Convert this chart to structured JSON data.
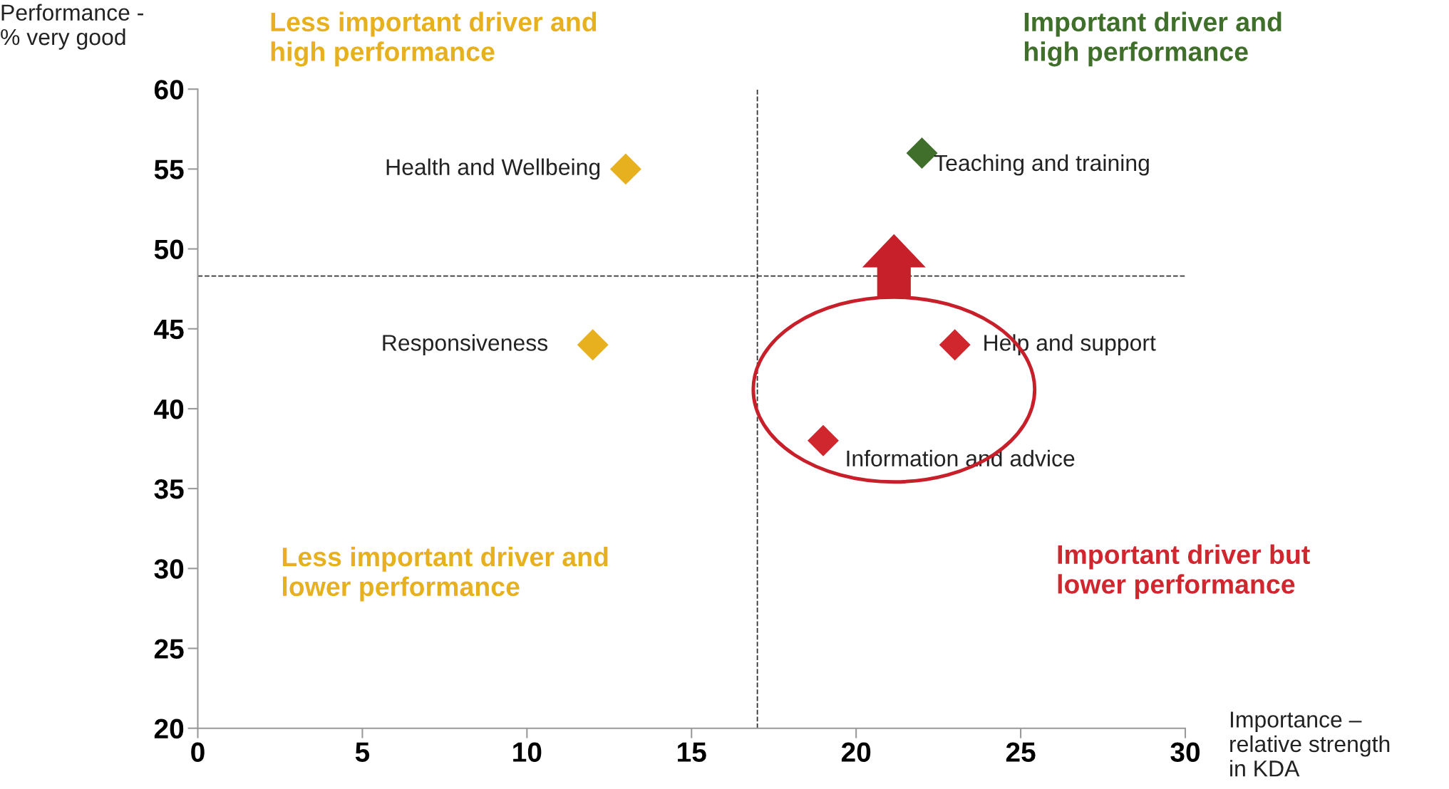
{
  "chart_data": {
    "type": "scatter",
    "xlabel": "Importance –\nrelative strength\nin KDA",
    "ylabel": "Performance -\n% very good",
    "series": [
      {
        "x": [
          13,
          12,
          22,
          23,
          19
        ],
        "values": [
          55,
          44,
          56,
          44,
          38
        ],
        "colors": [
          "#e6b01e",
          "#e6b01e",
          "#3f6f2a",
          "#d0262e",
          "#d0262e"
        ],
        "value_labels": [
          "Health and Wellbeing",
          "Responsiveness",
          "Teaching and training",
          "Help and support",
          "Information and advice"
        ]
      }
    ],
    "marker": "diamond",
    "xlim": [
      0,
      30
    ],
    "ylim": [
      20,
      60
    ],
    "xticks": [
      0,
      5,
      10,
      15,
      20,
      25,
      30
    ],
    "yticks": [
      20,
      25,
      30,
      35,
      40,
      45,
      50,
      55,
      60
    ],
    "grid": false,
    "legend": false,
    "ref_lines": [
      {
        "axis": "x",
        "value": 17,
        "color": "#333333",
        "line_style": "dashed"
      },
      {
        "axis": "y",
        "value": 48.3,
        "color": "#333333",
        "line_style": "dashed"
      }
    ],
    "annotations": [
      "Less important driver and\nhigh performance",
      "Important driver and\nhigh performance",
      "Less important driver and\nlower performance",
      "Important driver but\nlower performance"
    ]
  }
}
